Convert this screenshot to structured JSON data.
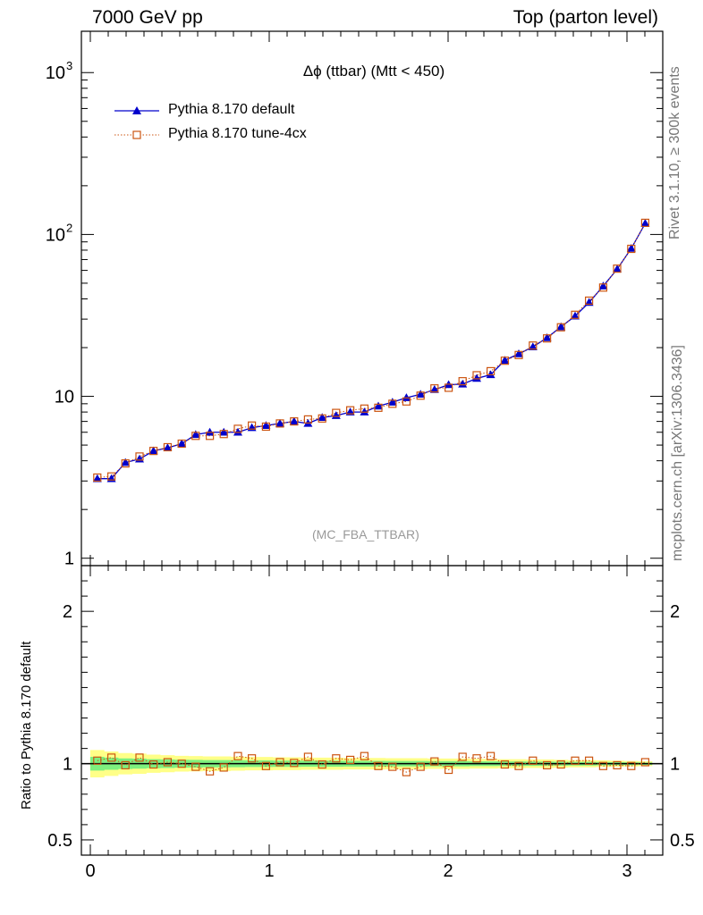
{
  "header": {
    "left": "7000 GeV pp",
    "right": "Top (parton level)"
  },
  "side_labels": {
    "rivet": "Rivet 3.1.10, ≥ 300k events",
    "mcplots": "mcplots.cern.ch [arXiv:1306.3436]"
  },
  "colors": {
    "default_series": "#0000cc",
    "tune_series": "#cc5511",
    "band_inner": "#7ef07e",
    "band_outer": "#ffff88"
  },
  "chart_data": [
    {
      "type": "line",
      "title": "Δϕ (ttbar) (Mtt < 450)",
      "watermark": "(MC_FBA_TTBAR)",
      "yscale": "log",
      "ylim": [
        0.9,
        1800
      ],
      "xlim": [
        -0.05,
        3.2
      ],
      "y_ticks": [
        {
          "v": 1,
          "label": "1"
        },
        {
          "v": 10,
          "label": "10"
        },
        {
          "v": 100,
          "label": "10",
          "sup": "2"
        },
        {
          "v": 1000,
          "label": "10",
          "sup": "3"
        }
      ],
      "legend": {
        "position": "top-left"
      },
      "x": [
        0.039,
        0.118,
        0.196,
        0.275,
        0.353,
        0.432,
        0.511,
        0.589,
        0.668,
        0.746,
        0.825,
        0.903,
        0.982,
        1.06,
        1.139,
        1.217,
        1.296,
        1.374,
        1.453,
        1.532,
        1.61,
        1.689,
        1.767,
        1.846,
        1.924,
        2.003,
        2.081,
        2.16,
        2.238,
        2.317,
        2.395,
        2.474,
        2.553,
        2.631,
        2.71,
        2.788,
        2.867,
        2.945,
        3.024,
        3.102
      ],
      "series": [
        {
          "name": "Pythia 8.170 default",
          "marker": "triangle",
          "values": [
            3.1,
            3.1,
            3.9,
            4.1,
            4.6,
            4.8,
            5.1,
            5.8,
            6.0,
            6.0,
            6.0,
            6.4,
            6.6,
            6.8,
            7.0,
            6.8,
            7.4,
            7.6,
            8.0,
            8.0,
            8.7,
            9.2,
            9.8,
            10.3,
            11.0,
            11.8,
            11.9,
            12.9,
            13.6,
            16.7,
            18.3,
            20.2,
            23.0,
            26.9,
            31.3,
            38.0,
            48.0,
            61.0,
            82.0,
            117.0
          ]
        },
        {
          "name": "Pythia 8.170 tune-4cx",
          "marker": "open-square",
          "values": [
            3.15,
            3.2,
            3.85,
            4.25,
            4.6,
            4.85,
            5.1,
            5.7,
            5.7,
            5.85,
            6.3,
            6.6,
            6.5,
            6.8,
            7.0,
            7.2,
            7.3,
            7.9,
            8.2,
            8.4,
            8.5,
            9.0,
            9.3,
            10.1,
            11.2,
            11.3,
            12.4,
            13.5,
            14.3,
            16.6,
            18.0,
            20.6,
            22.8,
            26.7,
            31.9,
            39.0,
            47.0,
            61.5,
            81.5,
            118.0
          ]
        }
      ]
    },
    {
      "type": "line",
      "ylabel": "Ratio to Pythia 8.170 default",
      "ylim": [
        0.4,
        2.3
      ],
      "xlim": [
        -0.05,
        3.2
      ],
      "x_ticks": [
        {
          "v": 0,
          "label": "0"
        },
        {
          "v": 1,
          "label": "1"
        },
        {
          "v": 2,
          "label": "2"
        },
        {
          "v": 3,
          "label": "3"
        }
      ],
      "y_ticks": [
        {
          "v": 0.5,
          "label": "0.5"
        },
        {
          "v": 1,
          "label": "1"
        },
        {
          "v": 2,
          "label": "2"
        }
      ],
      "reference": 1.0,
      "band_inner_halfwidth": [
        0.045,
        0.04,
        0.035,
        0.033,
        0.03,
        0.028,
        0.026,
        0.025,
        0.024,
        0.024,
        0.023,
        0.022,
        0.022,
        0.021,
        0.021,
        0.02,
        0.02,
        0.02,
        0.019,
        0.019,
        0.019,
        0.018,
        0.018,
        0.018,
        0.017,
        0.017,
        0.017,
        0.016,
        0.016,
        0.015,
        0.015,
        0.014,
        0.014,
        0.013,
        0.012,
        0.012,
        0.011,
        0.01,
        0.009,
        0.008
      ],
      "band_outer_halfwidth": [
        0.09,
        0.08,
        0.07,
        0.066,
        0.06,
        0.056,
        0.052,
        0.05,
        0.048,
        0.048,
        0.046,
        0.044,
        0.044,
        0.042,
        0.042,
        0.04,
        0.04,
        0.04,
        0.038,
        0.038,
        0.038,
        0.036,
        0.036,
        0.036,
        0.034,
        0.034,
        0.034,
        0.032,
        0.032,
        0.03,
        0.03,
        0.028,
        0.028,
        0.026,
        0.024,
        0.024,
        0.022,
        0.02,
        0.018,
        0.016
      ],
      "series": [
        {
          "name": "Pythia 8.170 tune-4cx",
          "marker": "open-square",
          "values": [
            1.02,
            1.04,
            0.99,
            1.04,
            0.995,
            1.01,
            1.0,
            0.98,
            0.95,
            0.975,
            1.05,
            1.035,
            0.985,
            1.01,
            1.005,
            1.045,
            0.995,
            1.035,
            1.025,
            1.05,
            0.985,
            0.98,
            0.945,
            0.98,
            1.015,
            0.96,
            1.045,
            1.035,
            1.05,
            0.995,
            0.985,
            1.02,
            0.99,
            0.995,
            1.02,
            1.02,
            0.985,
            0.99,
            0.985,
            1.01
          ]
        }
      ]
    }
  ]
}
